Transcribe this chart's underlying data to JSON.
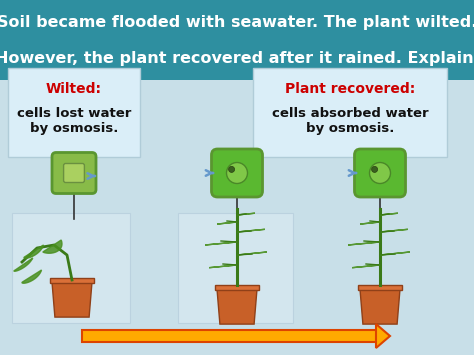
{
  "bg_top_color": "#2e8fa0",
  "bg_bottom_color": "#c8dfe8",
  "title_line1": "Soil became flooded with seawater. The plant wilted.",
  "title_line2": "However, the plant recovered after it rained. Explain.",
  "title_color": "#ffffff",
  "title_fontsize": 11.5,
  "box_color": "#daeef8",
  "box1_title": "Wilted:",
  "box1_body": "cells lost water\nby osmosis.",
  "box2_title": "Plant recovered:",
  "box2_body": "cells absorbed water\nby osmosis.",
  "label_title_color": "#cc0000",
  "label_body_color": "#111111",
  "label_fontsize": 9.5,
  "arrow_color": "#ffaa00",
  "arrow_edge_color": "#dd4400",
  "cell_wall_color": "#5a9630",
  "cell_fill_wilted": "#7ab840",
  "cell_fill_turgid": "#5aaa28",
  "cell_inner_color": "#a8d860",
  "pot_color": "#c86028",
  "pot_rim_color": "#da7038",
  "stem_color": "#3a7a18",
  "leaf_color": "#4a9020",
  "bg_rect_color": "#d8ecf4",
  "arrow_water_color": "#6699cc"
}
